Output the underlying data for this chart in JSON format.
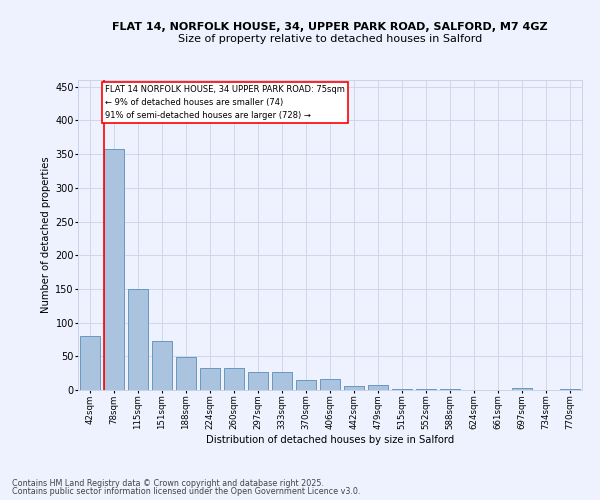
{
  "title1": "FLAT 14, NORFOLK HOUSE, 34, UPPER PARK ROAD, SALFORD, M7 4GZ",
  "title2": "Size of property relative to detached houses in Salford",
  "xlabel": "Distribution of detached houses by size in Salford",
  "ylabel": "Number of detached properties",
  "categories": [
    "42sqm",
    "78sqm",
    "115sqm",
    "151sqm",
    "188sqm",
    "224sqm",
    "260sqm",
    "297sqm",
    "333sqm",
    "370sqm",
    "406sqm",
    "442sqm",
    "479sqm",
    "515sqm",
    "552sqm",
    "588sqm",
    "624sqm",
    "661sqm",
    "697sqm",
    "734sqm",
    "770sqm"
  ],
  "values": [
    80,
    358,
    150,
    73,
    49,
    32,
    32,
    26,
    26,
    15,
    16,
    6,
    7,
    1,
    1,
    1,
    0,
    0,
    3,
    0,
    2
  ],
  "bar_color": "#aac4e0",
  "bar_edge_color": "#5b8db8",
  "annotation_text": "FLAT 14 NORFOLK HOUSE, 34 UPPER PARK ROAD: 75sqm\n← 9% of detached houses are smaller (74)\n91% of semi-detached houses are larger (728) →",
  "ylim": [
    0,
    460
  ],
  "yticks": [
    0,
    50,
    100,
    150,
    200,
    250,
    300,
    350,
    400,
    450
  ],
  "footer1": "Contains HM Land Registry data © Crown copyright and database right 2025.",
  "footer2": "Contains public sector information licensed under the Open Government Licence v3.0.",
  "bg_color": "#eef2ff",
  "plot_bg_color": "#eef2ff",
  "grid_color": "#c8d4e8"
}
